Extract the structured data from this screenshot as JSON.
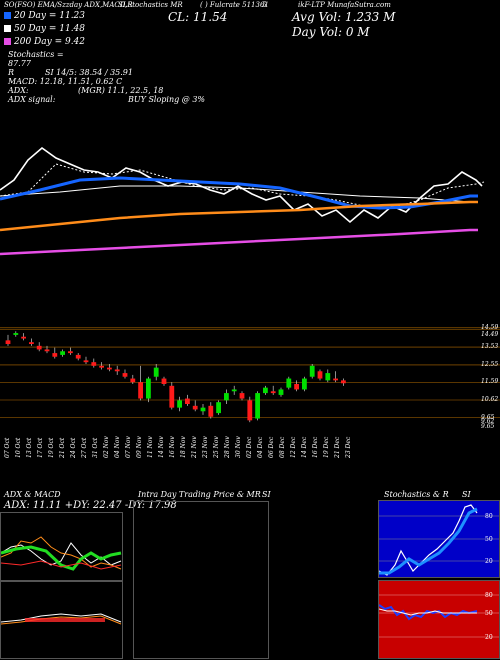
{
  "header": {
    "ticker_line": "SO(FSO) EMA/Szzday ADX,MACD,R",
    "mid_line": "SLStochastics MR",
    "id_line": "( ) Fulcrate 511361",
    "num_line": "5",
    "right_line": "ikF-LTP MunafaSutra.com"
  },
  "legend": [
    {
      "label": "20  Day = 11.23",
      "color": "#1565ff"
    },
    {
      "label": "50  Day = 11.48",
      "color": "#ffffff"
    },
    {
      "label": "200  Day = 9.42",
      "color": "#e64ee6"
    }
  ],
  "stats": {
    "cl": "CL: 11.54",
    "avg_vol": "Avg Vol: 1.233 M",
    "day_vol": "Day Vol: 0  M",
    "stochastics_label": "Stochastics = 87.77",
    "stochastics_value": "87.77",
    "r": "R",
    "si": "SI 14/5: 38.54 / 35.91",
    "macd": "MACD: 12.18, 11.51, 0.62 C",
    "adx": "ADX:",
    "adx_values": "(MGR) 11.1, 22.5, 18",
    "adx_signal": "ADX  signal:",
    "buy_signal": "BUY Sloping @ 3%"
  },
  "price_axis": [
    "14.59",
    "14.49",
    "13.53",
    "12.55",
    "11.59",
    "10.62",
    "9.65",
    "9.62",
    "9.65"
  ],
  "date_labels": [
    "07 Oct",
    "10 Oct",
    "13 Oct",
    "17 Oct",
    "19 Oct",
    "21 Oct",
    "24 Oct",
    "27 Oct",
    "31 Oct",
    "02 Nov",
    "04 Nov",
    "07 Nov",
    "09 Nov",
    "11 Nov",
    "14 Nov",
    "16 Nov",
    "18 Nov",
    "21 Nov",
    "23 Nov",
    "25 Nov",
    "28 Nov",
    "30 Nov",
    "02 Dec",
    "04 Dec",
    "06 Dec",
    "08 Dec",
    "12 Dec",
    "14 Dec",
    "16 Dec",
    "19 Dec",
    "21 Dec",
    "23 Dec"
  ],
  "bottom_panels": {
    "adx_title": "ADX  & MACD",
    "adx_values": "ADX: 11.11  +DY: 22.47  -DY: 17.98",
    "intra_title": "Intra Day Trading Price  & MR",
    "intra_si": "SI",
    "stoch_title": "Stochastics & R",
    "stoch_si": "SI",
    "stoch_ticks": [
      "80",
      "50",
      "20"
    ],
    "rsi_ticks": [
      "80",
      "50",
      "20"
    ]
  },
  "colors": {
    "up": "#00e000",
    "down": "#ff1a1a",
    "ema20": "#1565ff",
    "ema50": "#ffffff",
    "ema200": "#e64ee6",
    "orange": "#ff8c1a"
  },
  "chart_data": {
    "type": "candlestick",
    "price_ticks": [
      14.59,
      14.49,
      13.53,
      12.55,
      11.59,
      10.62,
      9.65
    ],
    "candles": [
      {
        "o": 13.9,
        "h": 14.2,
        "l": 13.6,
        "c": 13.7
      },
      {
        "o": 14.2,
        "h": 14.4,
        "l": 14.1,
        "c": 14.3
      },
      {
        "o": 14.1,
        "h": 14.3,
        "l": 13.9,
        "c": 14.0
      },
      {
        "o": 13.8,
        "h": 14.0,
        "l": 13.6,
        "c": 13.7
      },
      {
        "o": 13.6,
        "h": 13.8,
        "l": 13.3,
        "c": 13.4
      },
      {
        "o": 13.4,
        "h": 13.6,
        "l": 13.2,
        "c": 13.3
      },
      {
        "o": 13.2,
        "h": 13.5,
        "l": 12.9,
        "c": 13.0
      },
      {
        "o": 13.1,
        "h": 13.4,
        "l": 13.0,
        "c": 13.3
      },
      {
        "o": 13.3,
        "h": 13.5,
        "l": 13.1,
        "c": 13.2
      },
      {
        "o": 13.1,
        "h": 13.2,
        "l": 12.8,
        "c": 12.9
      },
      {
        "o": 12.8,
        "h": 13.0,
        "l": 12.6,
        "c": 12.7
      },
      {
        "o": 12.7,
        "h": 12.9,
        "l": 12.4,
        "c": 12.5
      },
      {
        "o": 12.5,
        "h": 12.7,
        "l": 12.3,
        "c": 12.4
      },
      {
        "o": 12.4,
        "h": 12.6,
        "l": 12.2,
        "c": 12.3
      },
      {
        "o": 12.3,
        "h": 12.5,
        "l": 12.0,
        "c": 12.2
      },
      {
        "o": 12.1,
        "h": 12.3,
        "l": 11.8,
        "c": 11.9
      },
      {
        "o": 11.8,
        "h": 12.0,
        "l": 11.5,
        "c": 11.6
      },
      {
        "o": 11.6,
        "h": 12.5,
        "l": 10.6,
        "c": 10.7
      },
      {
        "o": 10.7,
        "h": 11.9,
        "l": 10.5,
        "c": 11.8
      },
      {
        "o": 11.9,
        "h": 12.6,
        "l": 11.7,
        "c": 12.4
      },
      {
        "o": 11.8,
        "h": 11.9,
        "l": 11.4,
        "c": 11.5
      },
      {
        "o": 11.4,
        "h": 11.6,
        "l": 10.1,
        "c": 10.2
      },
      {
        "o": 10.2,
        "h": 10.8,
        "l": 10.0,
        "c": 10.6
      },
      {
        "o": 10.7,
        "h": 10.9,
        "l": 10.3,
        "c": 10.4
      },
      {
        "o": 10.3,
        "h": 10.6,
        "l": 10.0,
        "c": 10.1
      },
      {
        "o": 10.0,
        "h": 10.4,
        "l": 9.8,
        "c": 10.2
      },
      {
        "o": 10.3,
        "h": 10.5,
        "l": 9.6,
        "c": 9.7
      },
      {
        "o": 9.9,
        "h": 10.6,
        "l": 9.8,
        "c": 10.5
      },
      {
        "o": 10.6,
        "h": 11.2,
        "l": 10.4,
        "c": 11.0
      },
      {
        "o": 11.1,
        "h": 11.4,
        "l": 10.9,
        "c": 11.2
      },
      {
        "o": 11.0,
        "h": 11.1,
        "l": 10.6,
        "c": 10.7
      },
      {
        "o": 10.6,
        "h": 10.8,
        "l": 9.4,
        "c": 9.5
      },
      {
        "o": 9.6,
        "h": 11.1,
        "l": 9.5,
        "c": 11.0
      },
      {
        "o": 11.0,
        "h": 11.4,
        "l": 10.9,
        "c": 11.3
      },
      {
        "o": 11.1,
        "h": 11.4,
        "l": 10.9,
        "c": 11.0
      },
      {
        "o": 10.9,
        "h": 11.3,
        "l": 10.8,
        "c": 11.2
      },
      {
        "o": 11.3,
        "h": 11.9,
        "l": 11.2,
        "c": 11.8
      },
      {
        "o": 11.5,
        "h": 11.7,
        "l": 11.1,
        "c": 11.2
      },
      {
        "o": 11.2,
        "h": 11.9,
        "l": 11.1,
        "c": 11.8
      },
      {
        "o": 11.9,
        "h": 12.6,
        "l": 11.8,
        "c": 12.5
      },
      {
        "o": 12.2,
        "h": 12.3,
        "l": 11.7,
        "c": 11.8
      },
      {
        "o": 11.7,
        "h": 12.3,
        "l": 11.6,
        "c": 12.1
      },
      {
        "o": 11.8,
        "h": 12.2,
        "l": 11.6,
        "c": 11.7
      },
      {
        "o": 11.7,
        "h": 11.8,
        "l": 11.4,
        "c": 11.54
      }
    ]
  }
}
